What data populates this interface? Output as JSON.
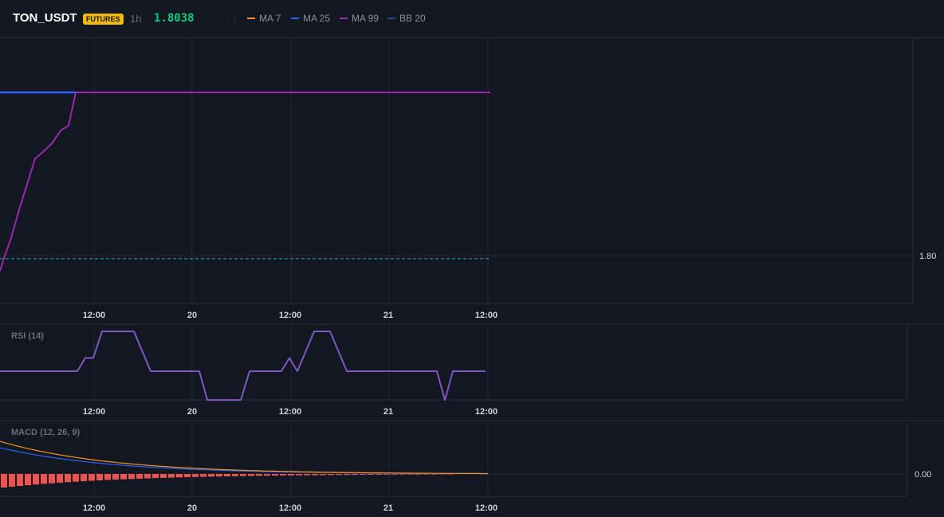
{
  "header": {
    "symbol": "TON_USDT",
    "badge": "FUTURES",
    "interval": "1h",
    "price": "1.8038"
  },
  "legend": [
    {
      "label": "MA 7",
      "color": "#f7931a"
    },
    {
      "label": "MA 25",
      "color": "#2962ff"
    },
    {
      "label": "MA 99",
      "color": "#9c27b0"
    },
    {
      "label": "BB 20",
      "color": "#2a4a8a"
    }
  ],
  "x_tick_labels": [
    "12:00",
    "20",
    "12:00",
    "21",
    "12:00"
  ],
  "chart_data": [
    {
      "type": "line",
      "panel": "price",
      "y_tick_labels": [
        "1.80"
      ],
      "series": [
        {
          "name": "MA 25",
          "color": "#2962ff",
          "points": [
            [
              0,
              1.832
            ],
            [
              95,
              1.832
            ]
          ]
        },
        {
          "name": "MA 99",
          "color": "#9c27b0",
          "points": [
            [
              0,
              1.797
            ],
            [
              5,
              1.7995
            ],
            [
              14,
              1.8035
            ],
            [
              24,
              1.809
            ],
            [
              34,
              1.814
            ],
            [
              44,
              1.819
            ],
            [
              55,
              1.8205
            ],
            [
              65,
              1.822
            ],
            [
              76,
              1.8245
            ],
            [
              86,
              1.8255
            ],
            [
              95,
              1.832
            ],
            [
              615,
              1.832
            ]
          ]
        },
        {
          "name": "BB 20",
          "color": "#26a69a",
          "points": [
            [
              0,
              1.7994
            ],
            [
              615,
              1.7994
            ]
          ]
        }
      ]
    },
    {
      "type": "line",
      "panel": "rsi",
      "title": "RSI (14)",
      "series": [
        {
          "name": "RSI",
          "color": "#7e57c2",
          "points": [
            [
              0,
              50
            ],
            [
              97,
              50
            ],
            [
              107,
              56
            ],
            [
              117,
              56
            ],
            [
              128,
              68
            ],
            [
              168,
              68
            ],
            [
              189,
              50
            ],
            [
              250,
              50
            ],
            [
              260,
              37
            ],
            [
              302,
              37
            ],
            [
              313,
              50
            ],
            [
              353,
              50
            ],
            [
              363,
              56
            ],
            [
              373,
              50
            ],
            [
              394,
              68
            ],
            [
              414,
              68
            ],
            [
              435,
              50
            ],
            [
              548,
              50
            ],
            [
              558,
              37
            ],
            [
              568,
              50
            ],
            [
              609,
              50
            ]
          ]
        }
      ]
    },
    {
      "type": "line",
      "panel": "macd",
      "title": "MACD (12, 26, 9)",
      "y_tick_labels": [
        "0.00"
      ],
      "series": [
        {
          "name": "MACD",
          "color": "#f7931a",
          "decay": [
            41,
            140
          ]
        },
        {
          "name": "Signal",
          "color": "#2962ff",
          "decay": [
            33,
            140
          ]
        },
        {
          "name": "Histogram",
          "color": "#ef5350",
          "decay": [
            -17,
            160
          ]
        }
      ]
    }
  ]
}
